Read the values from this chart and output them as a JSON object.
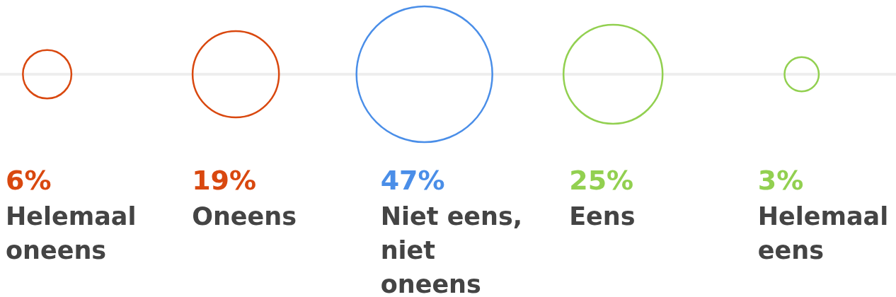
{
  "chart_data": {
    "type": "other",
    "categories": [
      "Helemaal oneens",
      "Oneens",
      "Niet eens, niet oneens",
      "Eens",
      "Helemaal eens"
    ],
    "values": [
      6,
      19,
      47,
      25,
      3
    ],
    "value_labels": [
      "6%",
      "19%",
      "47%",
      "25%",
      "3%"
    ],
    "colors": [
      "#d9480f",
      "#d9480f",
      "#4a8ee8",
      "#92d050",
      "#92d050"
    ]
  }
}
